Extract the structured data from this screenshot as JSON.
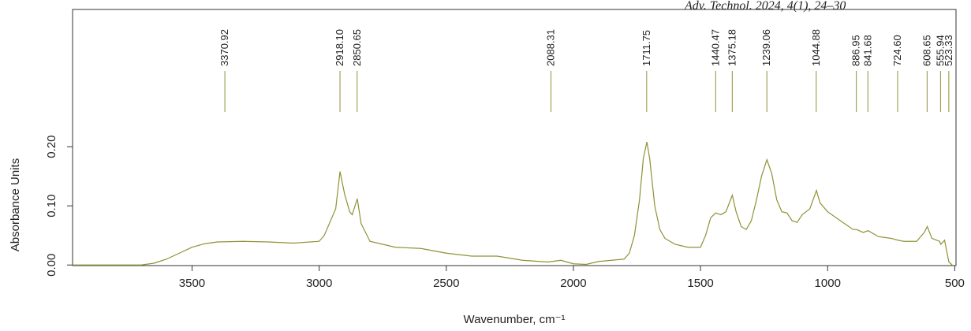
{
  "chart_data": {
    "type": "line",
    "source": "Adv. Technol. 2024, 4(1), 24–30",
    "x_label": "Wavenumber, cm⁻¹",
    "y_label": "Absorbance Units",
    "xlim": [
      3970,
      495
    ],
    "ylim": [
      -0.001,
      0.432
    ],
    "xticks": [
      3500,
      3000,
      2500,
      2000,
      1500,
      1000,
      500
    ],
    "yticks": [
      {
        "value": 0,
        "label": "0.00"
      },
      {
        "value": 0.1,
        "label": "0.10"
      },
      {
        "value": 0.2,
        "label": "0.20"
      }
    ],
    "peaks": [
      3370.92,
      {
        "value": 2918.1,
        "label": "2918.10"
      },
      2850.65,
      2088.31,
      1711.75,
      1440.47,
      1375.18,
      1239.06,
      1044.88,
      886.95,
      841.68,
      {
        "value": 724.6,
        "label": "724.60"
      },
      608.65,
      555.94,
      523.33
    ],
    "series": [
      {
        "name": "Absorbance",
        "color": "#8f9136",
        "x": [
          3970,
          3700,
          3650,
          3600,
          3550,
          3500,
          3450,
          3400,
          3300,
          3200,
          3100,
          3000,
          2980,
          2950,
          2935,
          2918,
          2900,
          2880,
          2870,
          2850,
          2835,
          2800,
          2700,
          2600,
          2500,
          2400,
          2300,
          2200,
          2100,
          2050,
          2000,
          1950,
          1900,
          1800,
          1780,
          1760,
          1740,
          1725,
          1711,
          1700,
          1680,
          1660,
          1640,
          1600,
          1550,
          1500,
          1480,
          1460,
          1440,
          1420,
          1400,
          1375,
          1360,
          1340,
          1320,
          1300,
          1280,
          1260,
          1239,
          1220,
          1200,
          1180,
          1160,
          1140,
          1120,
          1100,
          1070,
          1044,
          1030,
          1000,
          950,
          900,
          886,
          860,
          841,
          800,
          750,
          724,
          700,
          650,
          620,
          608,
          590,
          560,
          555,
          540,
          530,
          523,
          510
        ],
        "values": [
          0.0,
          0.0,
          0.003,
          0.01,
          0.02,
          0.03,
          0.036,
          0.039,
          0.04,
          0.039,
          0.037,
          0.04,
          0.05,
          0.08,
          0.095,
          0.158,
          0.12,
          0.09,
          0.085,
          0.112,
          0.07,
          0.04,
          0.03,
          0.028,
          0.02,
          0.015,
          0.015,
          0.008,
          0.005,
          0.008,
          0.002,
          0.001,
          0.006,
          0.01,
          0.02,
          0.05,
          0.11,
          0.18,
          0.208,
          0.18,
          0.1,
          0.06,
          0.045,
          0.035,
          0.03,
          0.03,
          0.05,
          0.08,
          0.088,
          0.085,
          0.09,
          0.118,
          0.09,
          0.065,
          0.06,
          0.075,
          0.11,
          0.15,
          0.178,
          0.155,
          0.11,
          0.09,
          0.088,
          0.075,
          0.072,
          0.085,
          0.095,
          0.126,
          0.105,
          0.09,
          0.075,
          0.06,
          0.06,
          0.055,
          0.058,
          0.048,
          0.045,
          0.042,
          0.04,
          0.04,
          0.055,
          0.065,
          0.045,
          0.04,
          0.035,
          0.042,
          0.02,
          0.005,
          0.0
        ]
      }
    ]
  }
}
